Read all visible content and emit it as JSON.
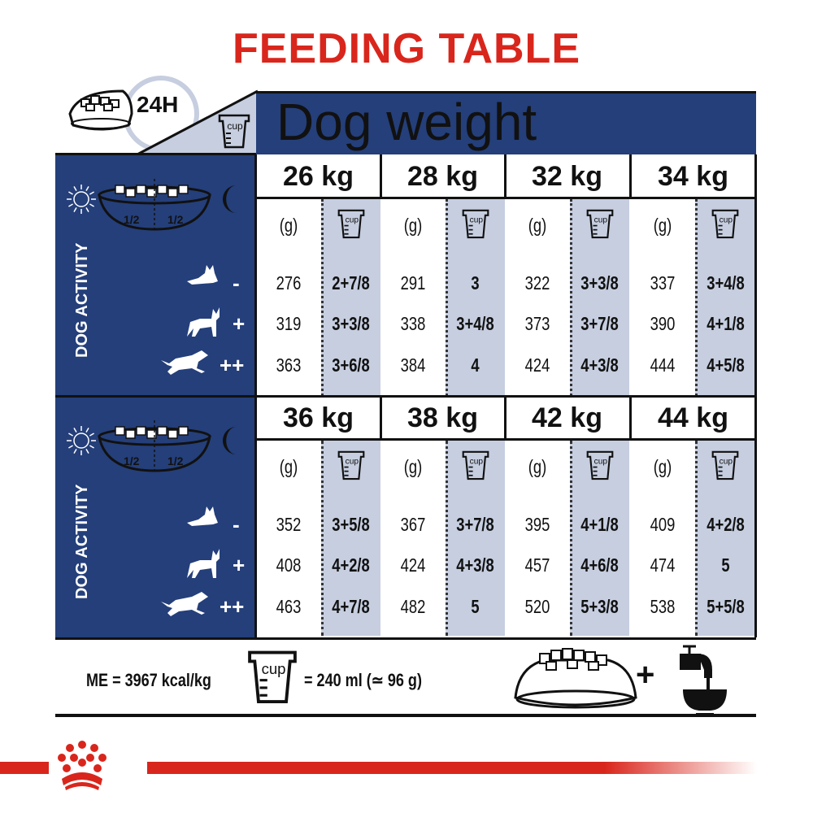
{
  "title": "FEEDING TABLE",
  "header": {
    "label": "Dog weight",
    "period": "24H",
    "cup_icon_label": "cup"
  },
  "colors": {
    "brand_red": "#d9261c",
    "panel_blue": "#243f7a",
    "cup_column": "#c6cee0"
  },
  "activity": {
    "label": "DOG ACTIVITY",
    "half": "1/2",
    "levels": [
      "-",
      "+",
      "++"
    ]
  },
  "units": {
    "grams": "(g)",
    "cup": "cup"
  },
  "blocks": [
    {
      "columns": [
        {
          "weight": "26 kg",
          "rows": [
            [
              "276",
              "2+7/8"
            ],
            [
              "319",
              "3+3/8"
            ],
            [
              "363",
              "3+6/8"
            ]
          ]
        },
        {
          "weight": "28 kg",
          "rows": [
            [
              "291",
              "3"
            ],
            [
              "338",
              "3+4/8"
            ],
            [
              "384",
              "4"
            ]
          ]
        },
        {
          "weight": "32 kg",
          "rows": [
            [
              "322",
              "3+3/8"
            ],
            [
              "373",
              "3+7/8"
            ],
            [
              "424",
              "4+3/8"
            ]
          ]
        },
        {
          "weight": "34 kg",
          "rows": [
            [
              "337",
              "3+4/8"
            ],
            [
              "390",
              "4+1/8"
            ],
            [
              "444",
              "4+5/8"
            ]
          ]
        }
      ]
    },
    {
      "columns": [
        {
          "weight": "36 kg",
          "rows": [
            [
              "352",
              "3+5/8"
            ],
            [
              "408",
              "4+2/8"
            ],
            [
              "463",
              "4+7/8"
            ]
          ]
        },
        {
          "weight": "38 kg",
          "rows": [
            [
              "367",
              "3+7/8"
            ],
            [
              "424",
              "4+3/8"
            ],
            [
              "482",
              "5"
            ]
          ]
        },
        {
          "weight": "42 kg",
          "rows": [
            [
              "395",
              "4+1/8"
            ],
            [
              "457",
              "4+6/8"
            ],
            [
              "520",
              "5+3/8"
            ]
          ]
        },
        {
          "weight": "44 kg",
          "rows": [
            [
              "409",
              "4+2/8"
            ],
            [
              "474",
              "5"
            ],
            [
              "538",
              "5+5/8"
            ]
          ]
        }
      ]
    }
  ],
  "footer": {
    "energy": "ME = 3967 kcal/kg",
    "cup_label": "cup",
    "cup_equivalence": "= 240 ml (≃ 96 g)",
    "plus": "+"
  },
  "logo": {
    "name": "Royal Canin crown logo"
  }
}
